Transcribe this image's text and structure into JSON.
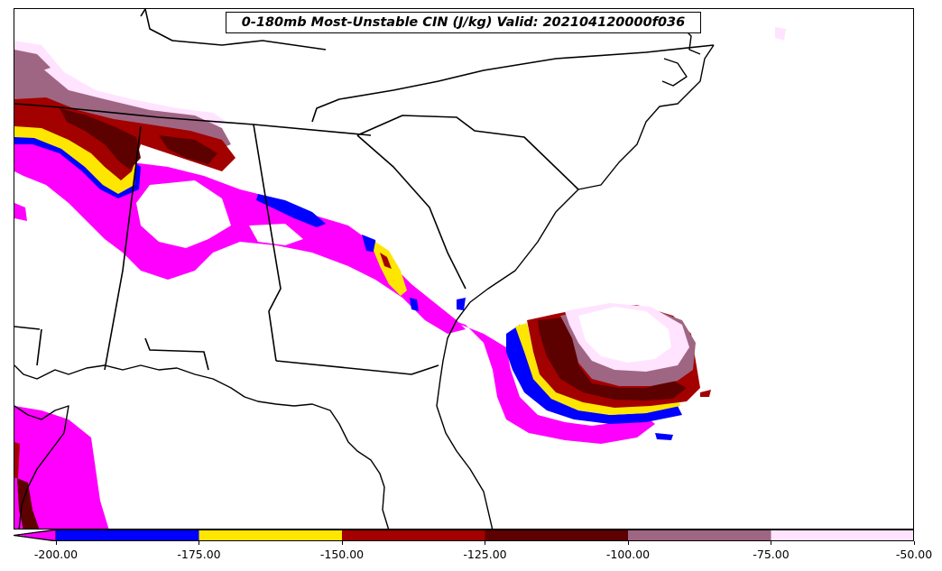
{
  "title": "0-180mb Most-Unstable CIN (J/kg) Valid: 202104120000f036",
  "colorbar": {
    "extend": "min",
    "bins": [
      {
        "from": -200,
        "to": -175,
        "color": "#0000ff"
      },
      {
        "from": -175,
        "to": -150,
        "color": "#ffe600"
      },
      {
        "from": -150,
        "to": -125,
        "color": "#a30000"
      },
      {
        "from": -125,
        "to": -100,
        "color": "#5c0000"
      },
      {
        "from": -100,
        "to": -75,
        "color": "#9e6682"
      },
      {
        "from": -75,
        "to": -50,
        "color": "#ffe3ff"
      }
    ],
    "below_min_color": "#ff00ff",
    "tick_labels": [
      "-200.00",
      "-175.00",
      "-150.00",
      "-125.00",
      "-100.00",
      "-75.00",
      "-50.00"
    ]
  },
  "map": {
    "region": "Southeastern United States",
    "boundaries": [
      "state lines",
      "coastlines"
    ]
  },
  "colors": {
    "magenta": "#ff00ff",
    "blue": "#0000ff",
    "yellow": "#ffe600",
    "red": "#a30000",
    "dark_red": "#5c0000",
    "mauve": "#9e6682",
    "pale_pink": "#ffe3ff"
  }
}
